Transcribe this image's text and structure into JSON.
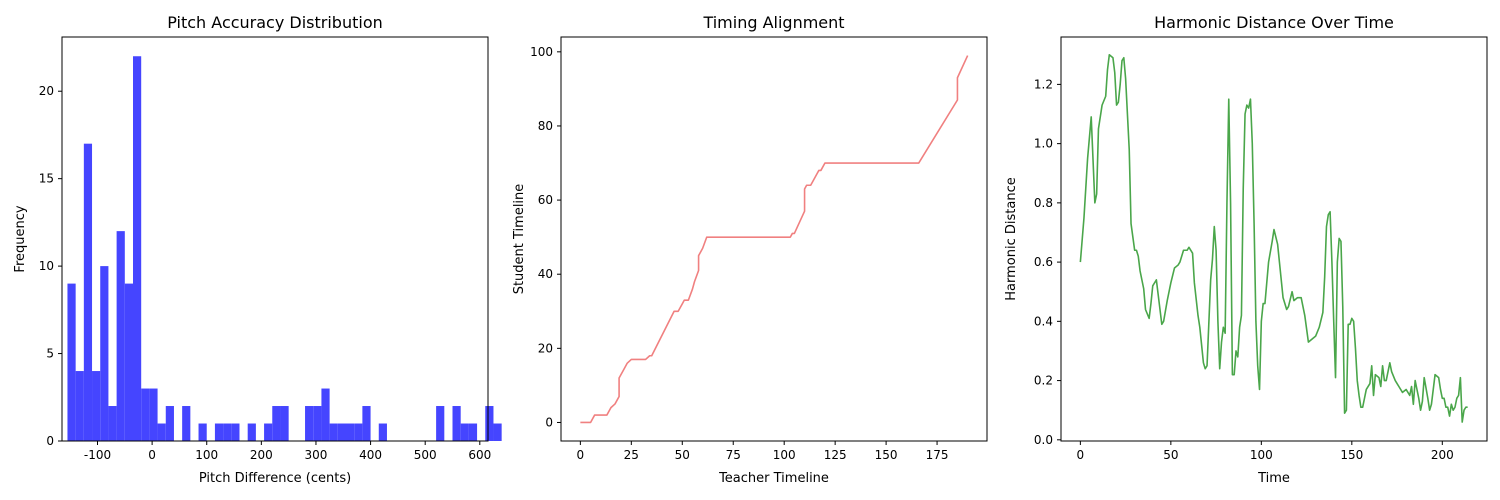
{
  "chart_data": [
    {
      "type": "bar",
      "title": "Pitch Accuracy Distribution",
      "xlabel": "Pitch Difference (cents)",
      "ylabel": "Frequency",
      "xlim": [
        -165,
        615
      ],
      "ylim": [
        0,
        23.1
      ],
      "xticks": [
        -100,
        0,
        100,
        200,
        300,
        400,
        500,
        600
      ],
      "yticks": [
        0,
        5,
        10,
        15,
        20
      ],
      "color": "#4545ff",
      "bin_start": -155,
      "bin_width": 15,
      "values": [
        9,
        4,
        17,
        4,
        10,
        2,
        12,
        9,
        22,
        3,
        3,
        1,
        2,
        0,
        2,
        0,
        1,
        0,
        1,
        1,
        1,
        0,
        1,
        0,
        1,
        2,
        2,
        0,
        0,
        2,
        2,
        3,
        1,
        1,
        1,
        1,
        2,
        0,
        1,
        0,
        0,
        0,
        0,
        0,
        0,
        2,
        0,
        2,
        1,
        1,
        0,
        2,
        1
      ]
    },
    {
      "type": "line",
      "title": "Timing Alignment",
      "xlabel": "Teacher Timeline",
      "ylabel": "Student Timeline",
      "xlim": [
        -9.5,
        199.5
      ],
      "ylim": [
        -5,
        104
      ],
      "xticks": [
        0,
        25,
        50,
        75,
        100,
        125,
        150,
        175
      ],
      "yticks": [
        0,
        20,
        40,
        60,
        80,
        100
      ],
      "color": "#f08080",
      "points": [
        [
          0,
          0
        ],
        [
          5,
          0
        ],
        [
          7,
          2
        ],
        [
          13,
          2
        ],
        [
          15,
          4
        ],
        [
          17,
          5
        ],
        [
          19,
          7
        ],
        [
          19,
          12
        ],
        [
          21,
          14
        ],
        [
          23,
          16
        ],
        [
          25,
          17
        ],
        [
          32,
          17
        ],
        [
          34,
          18
        ],
        [
          35,
          18
        ],
        [
          46,
          30
        ],
        [
          48,
          30
        ],
        [
          50,
          32
        ],
        [
          51,
          33
        ],
        [
          53,
          33
        ],
        [
          55,
          36
        ],
        [
          56,
          38
        ],
        [
          58,
          41
        ],
        [
          58,
          45
        ],
        [
          60,
          47
        ],
        [
          62,
          50
        ],
        [
          103,
          50
        ],
        [
          104,
          51
        ],
        [
          105,
          51
        ],
        [
          110,
          57
        ],
        [
          110,
          63
        ],
        [
          111,
          64
        ],
        [
          113,
          64
        ],
        [
          116,
          67
        ],
        [
          117,
          68
        ],
        [
          118,
          68
        ],
        [
          120,
          70
        ],
        [
          166,
          70
        ],
        [
          185,
          87
        ],
        [
          185,
          93
        ],
        [
          190,
          99
        ]
      ]
    },
    {
      "type": "line",
      "title": "Harmonic Distance Over Time",
      "xlabel": "Time",
      "ylabel": "Harmonic Distance",
      "xlim": [
        -10.7,
        224.7
      ],
      "ylim": [
        -0.004,
        1.36
      ],
      "xticks": [
        0,
        50,
        100,
        150,
        200
      ],
      "yticks": [
        0.0,
        0.2,
        0.4,
        0.6,
        0.8,
        1.0,
        1.2
      ],
      "color": "#4aa64a",
      "points": [
        [
          0,
          0.6
        ],
        [
          2,
          0.75
        ],
        [
          4,
          0.95
        ],
        [
          6,
          1.09
        ],
        [
          8,
          0.8
        ],
        [
          9,
          0.83
        ],
        [
          10,
          1.05
        ],
        [
          12,
          1.13
        ],
        [
          14,
          1.16
        ],
        [
          15,
          1.25
        ],
        [
          16,
          1.3
        ],
        [
          18,
          1.29
        ],
        [
          19,
          1.24
        ],
        [
          20,
          1.13
        ],
        [
          21,
          1.14
        ],
        [
          22,
          1.2
        ],
        [
          23,
          1.28
        ],
        [
          24,
          1.29
        ],
        [
          25,
          1.22
        ],
        [
          27,
          0.98
        ],
        [
          28,
          0.73
        ],
        [
          30,
          0.64
        ],
        [
          31,
          0.64
        ],
        [
          32,
          0.62
        ],
        [
          33,
          0.57
        ],
        [
          35,
          0.51
        ],
        [
          36,
          0.44
        ],
        [
          38,
          0.41
        ],
        [
          39,
          0.46
        ],
        [
          40,
          0.52
        ],
        [
          42,
          0.54
        ],
        [
          43,
          0.49
        ],
        [
          45,
          0.39
        ],
        [
          46,
          0.4
        ],
        [
          48,
          0.47
        ],
        [
          50,
          0.53
        ],
        [
          52,
          0.58
        ],
        [
          54,
          0.59
        ],
        [
          55,
          0.6
        ],
        [
          57,
          0.64
        ],
        [
          59,
          0.64
        ],
        [
          60,
          0.65
        ],
        [
          62,
          0.63
        ],
        [
          63,
          0.53
        ],
        [
          65,
          0.42
        ],
        [
          66,
          0.38
        ],
        [
          68,
          0.26
        ],
        [
          69,
          0.24
        ],
        [
          70,
          0.25
        ],
        [
          72,
          0.54
        ],
        [
          73,
          0.61
        ],
        [
          74,
          0.72
        ],
        [
          75,
          0.64
        ],
        [
          76,
          0.4
        ],
        [
          77,
          0.24
        ],
        [
          78,
          0.33
        ],
        [
          79,
          0.38
        ],
        [
          80,
          0.36
        ],
        [
          81,
          0.8
        ],
        [
          82,
          1.15
        ],
        [
          83,
          0.8
        ],
        [
          84,
          0.22
        ],
        [
          85,
          0.22
        ],
        [
          86,
          0.3
        ],
        [
          87,
          0.28
        ],
        [
          88,
          0.38
        ],
        [
          89,
          0.42
        ],
        [
          90,
          0.85
        ],
        [
          91,
          1.1
        ],
        [
          92,
          1.13
        ],
        [
          93,
          1.12
        ],
        [
          94,
          1.15
        ],
        [
          95,
          1.0
        ],
        [
          96,
          0.73
        ],
        [
          97,
          0.4
        ],
        [
          98,
          0.25
        ],
        [
          99,
          0.17
        ],
        [
          100,
          0.4
        ],
        [
          101,
          0.46
        ],
        [
          102,
          0.46
        ],
        [
          104,
          0.6
        ],
        [
          106,
          0.67
        ],
        [
          107,
          0.71
        ],
        [
          109,
          0.66
        ],
        [
          110,
          0.6
        ],
        [
          112,
          0.48
        ],
        [
          114,
          0.44
        ],
        [
          115,
          0.45
        ],
        [
          117,
          0.5
        ],
        [
          118,
          0.47
        ],
        [
          120,
          0.48
        ],
        [
          122,
          0.48
        ],
        [
          124,
          0.42
        ],
        [
          126,
          0.33
        ],
        [
          128,
          0.34
        ],
        [
          130,
          0.35
        ],
        [
          132,
          0.38
        ],
        [
          134,
          0.43
        ],
        [
          135,
          0.55
        ],
        [
          136,
          0.72
        ],
        [
          137,
          0.76
        ],
        [
          138,
          0.77
        ],
        [
          139,
          0.6
        ],
        [
          140,
          0.4
        ],
        [
          141,
          0.21
        ],
        [
          142,
          0.6
        ],
        [
          143,
          0.68
        ],
        [
          144,
          0.67
        ],
        [
          145,
          0.45
        ],
        [
          146,
          0.09
        ],
        [
          147,
          0.1
        ],
        [
          148,
          0.39
        ],
        [
          149,
          0.39
        ],
        [
          150,
          0.41
        ],
        [
          151,
          0.4
        ],
        [
          152,
          0.31
        ],
        [
          153,
          0.2
        ],
        [
          154,
          0.15
        ],
        [
          155,
          0.11
        ],
        [
          156,
          0.11
        ],
        [
          158,
          0.17
        ],
        [
          160,
          0.19
        ],
        [
          161,
          0.25
        ],
        [
          162,
          0.15
        ],
        [
          163,
          0.22
        ],
        [
          165,
          0.21
        ],
        [
          166,
          0.18
        ],
        [
          167,
          0.25
        ],
        [
          168,
          0.2
        ],
        [
          169,
          0.2
        ],
        [
          171,
          0.26
        ],
        [
          172,
          0.23
        ],
        [
          174,
          0.2
        ],
        [
          176,
          0.18
        ],
        [
          178,
          0.16
        ],
        [
          180,
          0.17
        ],
        [
          182,
          0.15
        ],
        [
          183,
          0.18
        ],
        [
          184,
          0.12
        ],
        [
          185,
          0.2
        ],
        [
          187,
          0.14
        ],
        [
          188,
          0.1
        ],
        [
          189,
          0.13
        ],
        [
          190,
          0.21
        ],
        [
          192,
          0.14
        ],
        [
          193,
          0.1
        ],
        [
          194,
          0.12
        ],
        [
          196,
          0.22
        ],
        [
          198,
          0.21
        ],
        [
          199,
          0.17
        ],
        [
          200,
          0.14
        ],
        [
          201,
          0.14
        ],
        [
          202,
          0.11
        ],
        [
          203,
          0.11
        ],
        [
          204,
          0.08
        ],
        [
          205,
          0.12
        ],
        [
          206,
          0.1
        ],
        [
          207,
          0.11
        ],
        [
          208,
          0.14
        ],
        [
          209,
          0.15
        ],
        [
          210,
          0.21
        ],
        [
          211,
          0.06
        ],
        [
          212,
          0.1
        ],
        [
          213,
          0.11
        ],
        [
          214,
          0.11
        ]
      ]
    }
  ]
}
